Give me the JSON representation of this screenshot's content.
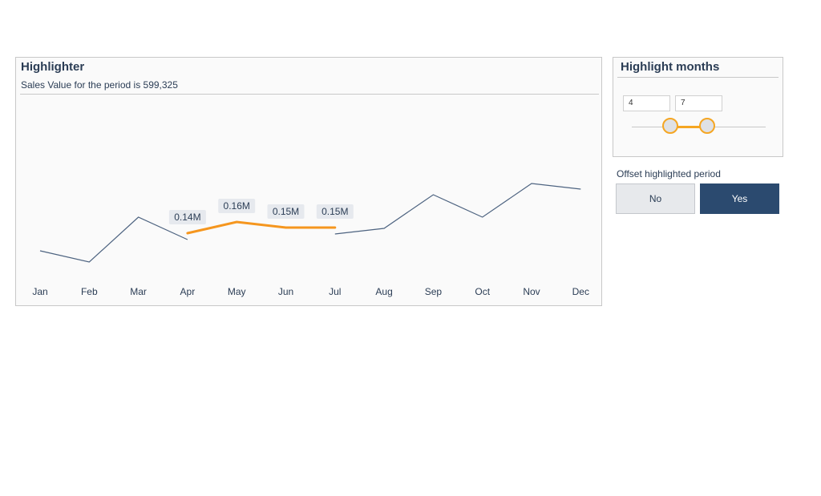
{
  "main_card": {
    "title": "Highlighter",
    "subtitle": "Sales Value for the period is 599,325"
  },
  "chart_data": {
    "type": "line",
    "categories": [
      "Jan",
      "Feb",
      "Mar",
      "Apr",
      "May",
      "Jun",
      "Jul",
      "Aug",
      "Sep",
      "Oct",
      "Nov",
      "Dec"
    ],
    "values": [
      0.1,
      0.08,
      0.16,
      0.14,
      0.16,
      0.15,
      0.15,
      0.14,
      0.2,
      0.16,
      0.22,
      0.21
    ],
    "highlight_range": [
      "Apr",
      "Jul"
    ],
    "data_labels": [
      {
        "category": "Apr",
        "text": "0.14M"
      },
      {
        "category": "May",
        "text": "0.16M"
      },
      {
        "category": "Jun",
        "text": "0.15M"
      },
      {
        "category": "Jul",
        "text": "0.15M"
      }
    ],
    "colors": {
      "line": "#4d6380",
      "highlight": "#f5961e",
      "label_bg": "#e6e9ee"
    }
  },
  "highlight_months": {
    "title": "Highlight months",
    "start": "4",
    "end": "7"
  },
  "offset": {
    "title": "Offset highlighted period",
    "options": [
      "No",
      "Yes"
    ],
    "selected": "Yes"
  }
}
